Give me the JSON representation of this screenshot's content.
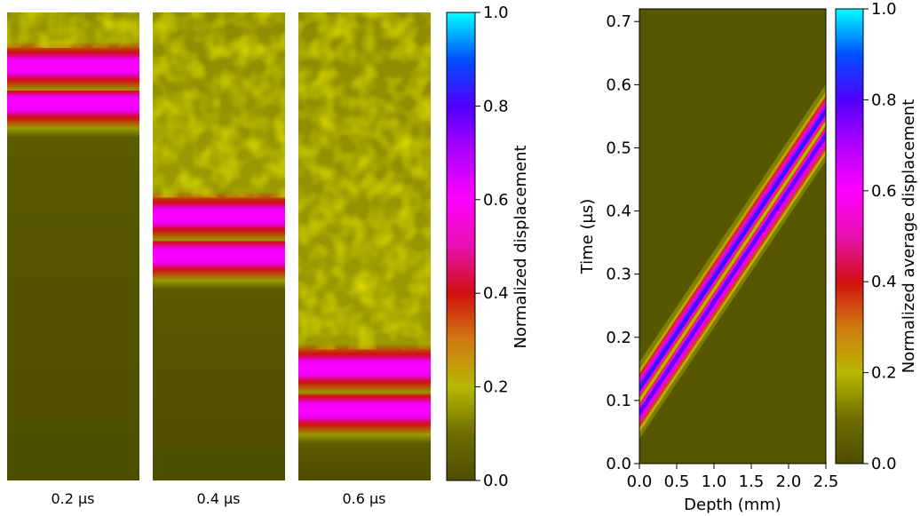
{
  "colors": {
    "background": "#ffffff",
    "colormap_stops": [
      [
        0.0,
        "#4d4d00"
      ],
      [
        0.1,
        "#6e6e00"
      ],
      [
        0.2,
        "#b8b800"
      ],
      [
        0.3,
        "#d07a10"
      ],
      [
        0.4,
        "#d01010"
      ],
      [
        0.5,
        "#e810b0"
      ],
      [
        0.6,
        "#ff00ff"
      ],
      [
        0.7,
        "#b000ff"
      ],
      [
        0.8,
        "#5000ff"
      ],
      [
        0.9,
        "#0050ff"
      ],
      [
        1.0,
        "#00ffff"
      ]
    ]
  },
  "snapshots": {
    "colorbar_label": "Normalized displacement",
    "colorbar_ticks": [
      "0.0",
      "0.2",
      "0.4",
      "0.6",
      "0.8",
      "1.0"
    ],
    "panels": [
      {
        "label": "0.2 µs",
        "time_us": 0.2
      },
      {
        "label": "0.4 µs",
        "time_us": 0.4
      },
      {
        "label": "0.6 µs",
        "time_us": 0.6
      }
    ]
  },
  "chart_data": [
    {
      "type": "heatmap",
      "description_source": "three wavefield snapshots",
      "panel_labels": [
        "0.2 µs",
        "0.4 µs",
        "0.6 µs"
      ],
      "colorbar": {
        "label": "Normalized displacement",
        "range": [
          0.0,
          1.0
        ],
        "ticks": [
          0.0,
          0.2,
          0.4,
          0.6,
          0.8,
          1.0
        ]
      }
    },
    {
      "type": "heatmap",
      "xlabel": "Depth (mm)",
      "ylabel": "Time (µs)",
      "xlim": [
        0.0,
        2.5
      ],
      "ylim": [
        0.0,
        0.72
      ],
      "xticks": [
        0.0,
        0.5,
        1.0,
        1.5,
        2.0,
        2.5
      ],
      "xtick_labels": [
        "0.0",
        "0.5",
        "1.0",
        "1.5",
        "2.0",
        "2.5"
      ],
      "yticks": [
        0.0,
        0.1,
        0.2,
        0.3,
        0.4,
        0.5,
        0.6,
        0.7
      ],
      "ytick_labels": [
        "0.0",
        "0.1",
        "0.2",
        "0.3",
        "0.4",
        "0.5",
        "0.6",
        "0.7"
      ],
      "band": {
        "t_at_depth_0": 0.1,
        "t_at_depth_2_5": 0.54
      },
      "colorbar": {
        "label": "Normalized average displacement",
        "range": [
          0.0,
          1.0
        ],
        "ticks": [
          0.0,
          0.2,
          0.4,
          0.6,
          0.8,
          1.0
        ],
        "tick_labels": [
          "0.0",
          "0.2",
          "0.4",
          "0.6",
          "0.8",
          "1.0"
        ]
      }
    }
  ]
}
